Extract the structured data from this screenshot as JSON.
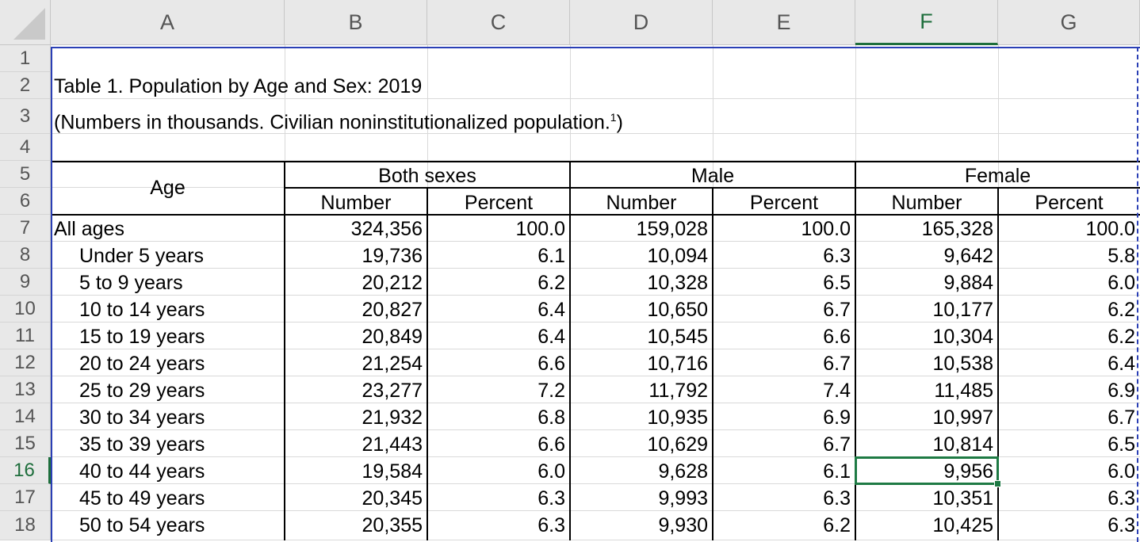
{
  "columns": [
    "A",
    "B",
    "C",
    "D",
    "E",
    "F",
    "G"
  ],
  "selected_column": "F",
  "rows": [
    "1",
    "2",
    "3",
    "4",
    "5",
    "6",
    "7",
    "8",
    "9",
    "10",
    "11",
    "12",
    "13",
    "14",
    "15",
    "16",
    "17",
    "18"
  ],
  "selected_row": "16",
  "table": {
    "title": "Table 1. Population by Age and Sex: 2019",
    "subtitle": "(Numbers in thousands. Civilian noninstitutionalized population.",
    "subtitle_sup": "1",
    "subtitle_end": ")",
    "age_header": "Age",
    "groups": [
      "Both sexes",
      "Male",
      "Female"
    ],
    "subheaders": [
      "Number",
      "Percent",
      "Number",
      "Percent",
      "Number",
      "Percent"
    ],
    "data": [
      {
        "age": "All ages",
        "v": [
          "324,356",
          "100.0",
          "159,028",
          "100.0",
          "165,328",
          "100.0"
        ]
      },
      {
        "age": "Under 5 years",
        "v": [
          "19,736",
          "6.1",
          "10,094",
          "6.3",
          "9,642",
          "5.8"
        ]
      },
      {
        "age": "5 to 9 years",
        "v": [
          "20,212",
          "6.2",
          "10,328",
          "6.5",
          "9,884",
          "6.0"
        ]
      },
      {
        "age": "10 to 14 years",
        "v": [
          "20,827",
          "6.4",
          "10,650",
          "6.7",
          "10,177",
          "6.2"
        ]
      },
      {
        "age": "15 to 19 years",
        "v": [
          "20,849",
          "6.4",
          "10,545",
          "6.6",
          "10,304",
          "6.2"
        ]
      },
      {
        "age": "20 to 24 years",
        "v": [
          "21,254",
          "6.6",
          "10,716",
          "6.7",
          "10,538",
          "6.4"
        ]
      },
      {
        "age": "25 to 29 years",
        "v": [
          "23,277",
          "7.2",
          "11,792",
          "7.4",
          "11,485",
          "6.9"
        ]
      },
      {
        "age": "30 to 34 years",
        "v": [
          "21,932",
          "6.8",
          "10,935",
          "6.9",
          "10,997",
          "6.7"
        ]
      },
      {
        "age": "35 to 39 years",
        "v": [
          "21,443",
          "6.6",
          "10,629",
          "6.7",
          "10,814",
          "6.5"
        ]
      },
      {
        "age": "40 to 44 years",
        "v": [
          "19,584",
          "6.0",
          "9,628",
          "6.1",
          "9,956",
          "6.0"
        ]
      },
      {
        "age": "45 to 49 years",
        "v": [
          "20,345",
          "6.3",
          "9,993",
          "6.3",
          "10,351",
          "6.3"
        ]
      },
      {
        "age": "50 to 54 years",
        "v": [
          "20,355",
          "6.3",
          "9,930",
          "6.2",
          "10,425",
          "6.3"
        ]
      }
    ]
  }
}
